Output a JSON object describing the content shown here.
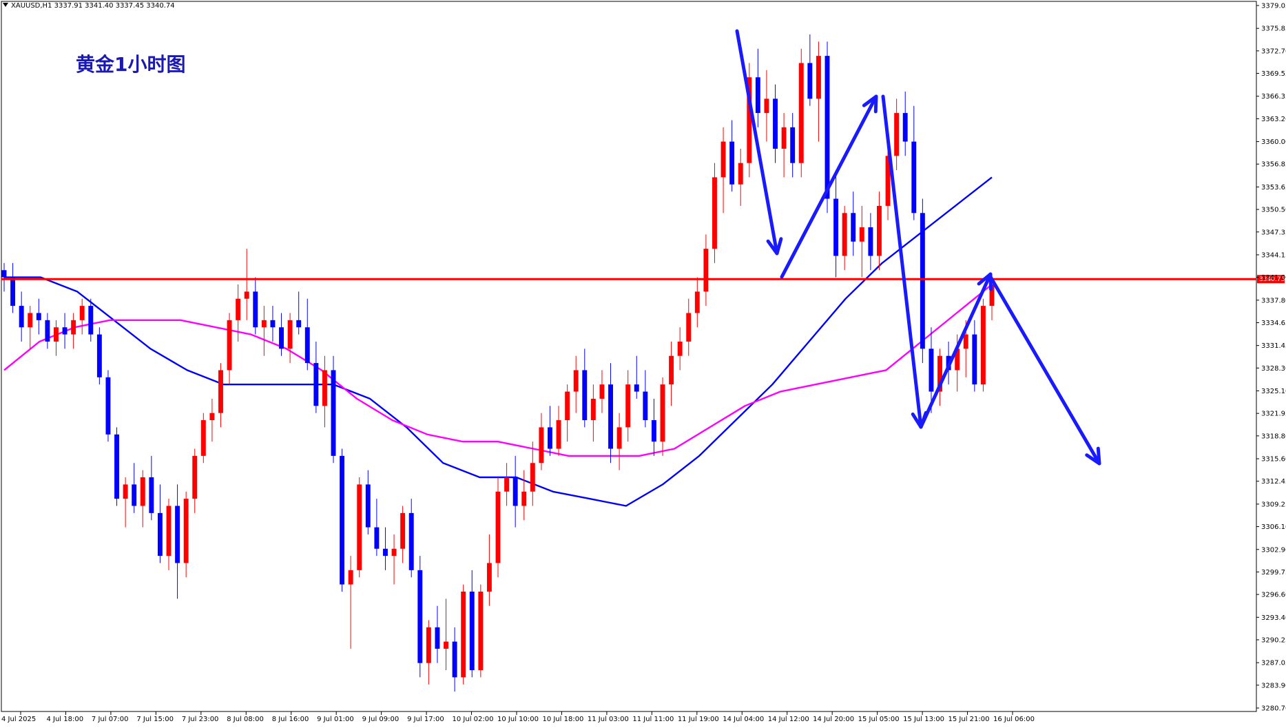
{
  "header": {
    "symbol": "XAUUSD,H1",
    "ohlc": "3337.91 3341.40 3337.45 3340.74"
  },
  "chart_title": "黄金1小时图",
  "colors": {
    "bull": "#ff0000",
    "bear": "#0000ff",
    "ma_fast": "#0000ff",
    "ma_slow": "#ff00ff",
    "level_line": "#ff0000",
    "annotation_arrow": "#1a1aff",
    "axis": "#000000"
  },
  "chart_data": {
    "type": "candlestick",
    "title": "黄金1小时图",
    "ylim": [
      3280.7,
      3379.05
    ],
    "y_ticks": [
      "3379.05",
      "3375.85",
      "3372.70",
      "3369.55",
      "3366.35",
      "3363.20",
      "3360.00",
      "3356.85",
      "3353.65",
      "3350.50",
      "3347.35",
      "3344.15",
      "3341.00",
      "3337.80",
      "3334.65",
      "3331.45",
      "3328.30",
      "3325.10",
      "3321.95",
      "3318.80",
      "3315.60",
      "3312.45",
      "3309.25",
      "3306.10",
      "3302.90",
      "3299.75",
      "3296.60",
      "3293.40",
      "3290.25",
      "3287.05",
      "3283.90",
      "3280.70"
    ],
    "x_ticks": [
      "4 Jul 2025",
      "4 Jul 18:00",
      "7 Jul 07:00",
      "7 Jul 15:00",
      "7 Jul 23:00",
      "8 Jul 08:00",
      "8 Jul 16:00",
      "9 Jul 01:00",
      "9 Jul 09:00",
      "9 Jul 17:00",
      "10 Jul 02:00",
      "10 Jul 10:00",
      "10 Jul 18:00",
      "11 Jul 03:00",
      "11 Jul 11:00",
      "11 Jul 19:00",
      "14 Jul 04:00",
      "14 Jul 12:00",
      "14 Jul 20:00",
      "15 Jul 05:00",
      "15 Jul 13:00",
      "15 Jul 21:00",
      "16 Jul 06:00"
    ],
    "level_line": {
      "value": 3340.75,
      "label": "3340.75"
    },
    "candles": [
      [
        3342,
        3343,
        3339,
        3341
      ],
      [
        3341,
        3343,
        3336,
        3337
      ],
      [
        3337,
        3339,
        3332,
        3334
      ],
      [
        3334,
        3337,
        3331,
        3336
      ],
      [
        3336,
        3338,
        3333,
        3335
      ],
      [
        3335,
        3336,
        3331,
        3332
      ],
      [
        3332,
        3335,
        3330,
        3334
      ],
      [
        3334,
        3336,
        3331,
        3333
      ],
      [
        3333,
        3336,
        3331,
        3335
      ],
      [
        3335,
        3338,
        3333,
        3337
      ],
      [
        3337,
        3338,
        3332,
        3333
      ],
      [
        3333,
        3334,
        3326,
        3327
      ],
      [
        3327,
        3328,
        3318,
        3319
      ],
      [
        3319,
        3320,
        3309,
        3310
      ],
      [
        3310,
        3313,
        3306,
        3312
      ],
      [
        3312,
        3315,
        3308,
        3309
      ],
      [
        3309,
        3314,
        3306,
        3313
      ],
      [
        3313,
        3316,
        3307,
        3308
      ],
      [
        3308,
        3312,
        3301,
        3302
      ],
      [
        3302,
        3310,
        3300,
        3309
      ],
      [
        3309,
        3312,
        3296,
        3301
      ],
      [
        3301,
        3311,
        3299,
        3310
      ],
      [
        3310,
        3317,
        3308,
        3316
      ],
      [
        3316,
        3322,
        3315,
        3321
      ],
      [
        3321,
        3324,
        3318,
        3322
      ],
      [
        3322,
        3329,
        3320,
        3328
      ],
      [
        3328,
        3336,
        3326,
        3335
      ],
      [
        3335,
        3340,
        3332,
        3338
      ],
      [
        3338,
        3345,
        3335,
        3339
      ],
      [
        3339,
        3341,
        3333,
        3334
      ],
      [
        3334,
        3337,
        3330,
        3335
      ],
      [
        3335,
        3337,
        3332,
        3334
      ],
      [
        3334,
        3336,
        3330,
        3331
      ],
      [
        3331,
        3336,
        3329,
        3335
      ],
      [
        3335,
        3339,
        3333,
        3334
      ],
      [
        3334,
        3338,
        3328,
        3329
      ],
      [
        3329,
        3332,
        3322,
        3323
      ],
      [
        3323,
        3330,
        3320,
        3328
      ],
      [
        3328,
        3330,
        3315,
        3316
      ],
      [
        3316,
        3317,
        3297,
        3298
      ],
      [
        3298,
        3302,
        3289,
        3300
      ],
      [
        3300,
        3313,
        3299,
        3312
      ],
      [
        3312,
        3314,
        3305,
        3306
      ],
      [
        3306,
        3310,
        3302,
        3303
      ],
      [
        3303,
        3306,
        3300,
        3302
      ],
      [
        3302,
        3305,
        3298,
        3303
      ],
      [
        3303,
        3309,
        3301,
        3308
      ],
      [
        3308,
        3310,
        3299,
        3300
      ],
      [
        3300,
        3302,
        3285,
        3287
      ],
      [
        3287,
        3293,
        3284,
        3292
      ],
      [
        3292,
        3295,
        3287,
        3289
      ],
      [
        3289,
        3296,
        3286,
        3290
      ],
      [
        3290,
        3292,
        3283,
        3285
      ],
      [
        3285,
        3298,
        3284,
        3297
      ],
      [
        3297,
        3300,
        3285,
        3286
      ],
      [
        3286,
        3298,
        3285,
        3297
      ],
      [
        3297,
        3305,
        3295,
        3301
      ],
      [
        3301,
        3313,
        3299,
        3311
      ],
      [
        3311,
        3315,
        3309,
        3313
      ],
      [
        3313,
        3316,
        3306,
        3309
      ],
      [
        3309,
        3314,
        3307,
        3311
      ],
      [
        3311,
        3318,
        3309,
        3315
      ],
      [
        3315,
        3322,
        3314,
        3320
      ],
      [
        3320,
        3323,
        3316,
        3317
      ],
      [
        3317,
        3323,
        3316,
        3321
      ],
      [
        3321,
        3326,
        3318,
        3325
      ],
      [
        3325,
        3330,
        3322,
        3328
      ],
      [
        3328,
        3331,
        3320,
        3321
      ],
      [
        3321,
        3326,
        3318,
        3324
      ],
      [
        3324,
        3328,
        3322,
        3326
      ],
      [
        3326,
        3329,
        3315,
        3317
      ],
      [
        3317,
        3322,
        3314,
        3320
      ],
      [
        3320,
        3328,
        3318,
        3326
      ],
      [
        3326,
        3330,
        3324,
        3325
      ],
      [
        3325,
        3328,
        3320,
        3321
      ],
      [
        3321,
        3324,
        3316,
        3318
      ],
      [
        3318,
        3327,
        3316,
        3326
      ],
      [
        3326,
        3332,
        3323,
        3330
      ],
      [
        3330,
        3334,
        3328,
        3332
      ],
      [
        3332,
        3338,
        3330,
        3336
      ],
      [
        3336,
        3341,
        3334,
        3339
      ],
      [
        3339,
        3347,
        3337,
        3345
      ],
      [
        3345,
        3357,
        3343,
        3355
      ],
      [
        3355,
        3362,
        3350,
        3360
      ],
      [
        3360,
        3363,
        3353,
        3354
      ],
      [
        3354,
        3359,
        3351,
        3357
      ],
      [
        3357,
        3371,
        3355,
        3369
      ],
      [
        3369,
        3373,
        3362,
        3364
      ],
      [
        3364,
        3370,
        3360,
        3366
      ],
      [
        3366,
        3368,
        3357,
        3359
      ],
      [
        3359,
        3364,
        3355,
        3362
      ],
      [
        3362,
        3364,
        3355,
        3357
      ],
      [
        3357,
        3373,
        3355,
        3371
      ],
      [
        3371,
        3375,
        3365,
        3366
      ],
      [
        3366,
        3374,
        3360,
        3372
      ],
      [
        3372,
        3374,
        3350,
        3352
      ],
      [
        3352,
        3356,
        3341,
        3344
      ],
      [
        3344,
        3351,
        3342,
        3350
      ],
      [
        3350,
        3353,
        3344,
        3346
      ],
      [
        3346,
        3351,
        3341,
        3348
      ],
      [
        3348,
        3350,
        3342,
        3344
      ],
      [
        3344,
        3353,
        3342,
        3351
      ],
      [
        3351,
        3360,
        3349,
        3358
      ],
      [
        3358,
        3366,
        3356,
        3364
      ],
      [
        3364,
        3367,
        3358,
        3360
      ],
      [
        3360,
        3365,
        3349,
        3350
      ],
      [
        3350,
        3352,
        3329,
        3331
      ],
      [
        3331,
        3334,
        3322,
        3325
      ],
      [
        3325,
        3331,
        3323,
        3330
      ],
      [
        3330,
        3332,
        3326,
        3328
      ],
      [
        3328,
        3333,
        3325,
        3331
      ],
      [
        3331,
        3335,
        3327,
        3333
      ],
      [
        3333,
        3335,
        3325,
        3326
      ],
      [
        3326,
        3338,
        3325,
        3337
      ],
      [
        3337,
        3341,
        3335,
        3340
      ]
    ],
    "series": [
      {
        "name": "",
        "color": "#0000ff",
        "values": [
          3341,
          3341,
          3339,
          3335,
          3331,
          3328,
          3326,
          3326,
          3326,
          3326,
          3324,
          3320,
          3315,
          3313,
          3313,
          3311,
          3310,
          3309,
          3312,
          3316,
          3321,
          3326,
          3332,
          3338,
          3343,
          3347,
          3351,
          3355
        ]
      },
      {
        "name": "",
        "color": "#ff00ff",
        "values": [
          3328,
          3332,
          3334,
          3335,
          3335,
          3335,
          3334,
          3333,
          3331,
          3328,
          3324,
          3321,
          3319,
          3318,
          3318,
          3317,
          3316,
          3316,
          3316,
          3317,
          3320,
          3323,
          3325,
          3326,
          3327,
          3328,
          3332,
          3336,
          3340
        ]
      }
    ]
  }
}
